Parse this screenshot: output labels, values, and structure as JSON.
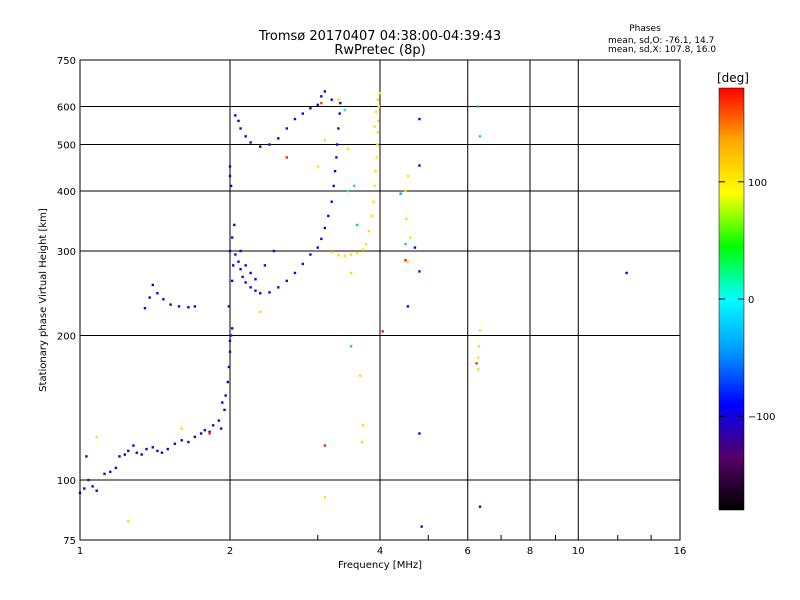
{
  "chart_data": {
    "type": "scatter",
    "title": "Tromsø 20170407 04:38:00-04:39:43",
    "subtitle": "RwPretec (8p)",
    "xlabel": "Frequency [MHz]",
    "ylabel": "Stationary phase Virtual Height [km]",
    "x_scale": "log",
    "y_scale": "log",
    "xlim": [
      1,
      16
    ],
    "ylim": [
      75,
      750
    ],
    "x_ticks": [
      1,
      2,
      4,
      6,
      8,
      10,
      16
    ],
    "y_ticks": [
      75,
      100,
      200,
      300,
      400,
      500,
      600,
      750
    ],
    "grid": true,
    "phase_info": {
      "title": "Phases",
      "line_o": "mean, sd,O: -76.1, 14.7",
      "line_x": "mean, sd,X: 107.8, 16.0"
    },
    "colorbar": {
      "label": "[deg]",
      "range": [
        -180,
        180
      ],
      "ticks": [
        100,
        0,
        -100
      ],
      "tick_labels": [
        "100",
        "0",
        "−100"
      ],
      "colormap": [
        "#000000",
        "#550066",
        "#0000ff",
        "#0099ff",
        "#00ffff",
        "#00ff00",
        "#ffff00",
        "#ffaa00",
        "#ff0000"
      ]
    },
    "series": [
      {
        "values": [
          [
            1.0,
            94,
            -110
          ],
          [
            1.02,
            96,
            -105
          ],
          [
            1.04,
            100,
            -110
          ],
          [
            1.06,
            97,
            -100
          ],
          [
            1.08,
            95,
            -108
          ],
          [
            1.03,
            112,
            -100
          ],
          [
            1.12,
            103,
            -105
          ],
          [
            1.15,
            104,
            -110
          ],
          [
            1.18,
            106,
            -100
          ],
          [
            1.2,
            112,
            -105
          ],
          [
            1.23,
            113,
            -108
          ],
          [
            1.25,
            115,
            -100
          ],
          [
            1.28,
            118,
            -104
          ],
          [
            1.3,
            114,
            -110
          ],
          [
            1.33,
            113,
            -100
          ],
          [
            1.36,
            116,
            -106
          ],
          [
            1.4,
            117,
            -102
          ],
          [
            1.43,
            115,
            -108
          ],
          [
            1.46,
            114,
            -100
          ],
          [
            1.5,
            116,
            -104
          ],
          [
            1.55,
            119,
            -106
          ],
          [
            1.6,
            121,
            -100
          ],
          [
            1.65,
            120,
            -108
          ],
          [
            1.7,
            123,
            -102
          ],
          [
            1.75,
            125,
            -104
          ],
          [
            1.78,
            127,
            -100
          ],
          [
            1.82,
            126,
            -110
          ],
          [
            1.85,
            130,
            -105
          ],
          [
            1.9,
            133,
            -100
          ],
          [
            1.92,
            128,
            -108
          ],
          [
            1.95,
            140,
            -104
          ],
          [
            1.93,
            145,
            -100
          ],
          [
            1.96,
            150,
            -110
          ],
          [
            1.98,
            160,
            -104
          ],
          [
            1.99,
            172,
            -100
          ],
          [
            2.0,
            185,
            -106
          ],
          [
            2.0,
            195,
            -102
          ],
          [
            2.01,
            200,
            -110
          ],
          [
            2.02,
            207,
            -104
          ],
          [
            1.99,
            230,
            -108
          ],
          [
            2.02,
            260,
            -100
          ],
          [
            2.03,
            280,
            -104
          ],
          [
            2.0,
            300,
            -108
          ],
          [
            2.02,
            320,
            -102
          ],
          [
            2.04,
            340,
            -106
          ],
          [
            2.01,
            410,
            -104
          ],
          [
            2.0,
            430,
            -100
          ],
          [
            2.0,
            450,
            -110
          ],
          [
            1.35,
            228,
            -100
          ],
          [
            1.38,
            240,
            -104
          ],
          [
            1.4,
            255,
            -106
          ],
          [
            1.43,
            245,
            -100
          ],
          [
            1.47,
            238,
            -104
          ],
          [
            1.52,
            232,
            -102
          ],
          [
            1.58,
            230,
            -106
          ],
          [
            1.65,
            229,
            -100
          ],
          [
            1.7,
            230,
            -104
          ],
          [
            2.05,
            295,
            -102
          ],
          [
            2.08,
            285,
            -106
          ],
          [
            2.1,
            275,
            -100
          ],
          [
            2.12,
            265,
            -104
          ],
          [
            2.15,
            258,
            -108
          ],
          [
            2.2,
            252,
            -100
          ],
          [
            2.25,
            248,
            -104
          ],
          [
            2.3,
            245,
            -106
          ],
          [
            2.4,
            246,
            -100
          ],
          [
            2.5,
            252,
            -104
          ],
          [
            2.6,
            260,
            -102
          ],
          [
            2.7,
            270,
            -106
          ],
          [
            2.8,
            282,
            -100
          ],
          [
            2.9,
            295,
            -104
          ],
          [
            3.0,
            305,
            -108
          ],
          [
            3.05,
            318,
            -100
          ],
          [
            3.1,
            335,
            -104
          ],
          [
            3.15,
            355,
            -106
          ],
          [
            3.2,
            380,
            -100
          ],
          [
            3.23,
            410,
            -104
          ],
          [
            3.25,
            440,
            -102
          ],
          [
            3.27,
            470,
            -106
          ],
          [
            3.28,
            500,
            -100
          ],
          [
            3.3,
            540,
            -104
          ],
          [
            3.32,
            580,
            -108
          ],
          [
            3.33,
            610,
            -100
          ],
          [
            2.05,
            575,
            -100
          ],
          [
            2.08,
            560,
            -104
          ],
          [
            2.1,
            540,
            -106
          ],
          [
            2.15,
            520,
            -100
          ],
          [
            2.2,
            505,
            -104
          ],
          [
            2.3,
            495,
            -102
          ],
          [
            2.4,
            500,
            -106
          ],
          [
            2.5,
            515,
            -100
          ],
          [
            2.6,
            540,
            -104
          ],
          [
            2.7,
            565,
            -106
          ],
          [
            2.8,
            580,
            -100
          ],
          [
            2.9,
            595,
            -104
          ],
          [
            3.0,
            605,
            -102
          ],
          [
            3.05,
            630,
            -106
          ],
          [
            3.1,
            645,
            -100
          ],
          [
            3.2,
            620,
            -104
          ],
          [
            2.1,
            300,
            -95
          ],
          [
            2.15,
            280,
            -98
          ],
          [
            2.2,
            270,
            -96
          ],
          [
            2.25,
            262,
            -94
          ],
          [
            2.35,
            280,
            -96
          ],
          [
            2.45,
            300,
            -98
          ],
          [
            4.8,
            565,
            -100
          ],
          [
            4.8,
            452,
            -104
          ],
          [
            4.8,
            272,
            -106
          ],
          [
            4.8,
            125,
            -100
          ],
          [
            4.85,
            80,
            -104
          ],
          [
            12.5,
            270,
            -102
          ],
          [
            4.55,
            230,
            -108
          ],
          [
            4.7,
            305,
            -100
          ],
          [
            6.35,
            88,
            -130
          ]
        ]
      },
      {
        "values": [
          [
            3.2,
            298,
            105
          ],
          [
            3.3,
            294,
            108
          ],
          [
            3.4,
            293,
            106
          ],
          [
            3.5,
            295,
            110
          ],
          [
            3.6,
            297,
            104
          ],
          [
            3.7,
            302,
            108
          ],
          [
            3.75,
            310,
            106
          ],
          [
            3.8,
            330,
            110
          ],
          [
            3.85,
            355,
            104
          ],
          [
            3.88,
            380,
            108
          ],
          [
            3.9,
            410,
            106
          ],
          [
            3.92,
            440,
            110
          ],
          [
            3.94,
            470,
            104
          ],
          [
            3.95,
            500,
            108
          ],
          [
            3.96,
            530,
            106
          ],
          [
            3.97,
            560,
            110
          ],
          [
            3.98,
            600,
            104
          ],
          [
            3.99,
            640,
            108
          ],
          [
            3.96,
            620,
            112
          ],
          [
            3.93,
            585,
            106
          ],
          [
            3.9,
            545,
            110
          ],
          [
            4.5,
            400,
            110
          ],
          [
            4.55,
            430,
            105
          ],
          [
            4.52,
            350,
            108
          ],
          [
            4.6,
            320,
            106
          ],
          [
            4.55,
            285,
            112
          ],
          [
            6.3,
            170,
            108
          ],
          [
            6.3,
            180,
            104
          ],
          [
            6.32,
            190,
            110
          ],
          [
            6.35,
            205,
            106
          ],
          [
            3.5,
            270,
            108
          ],
          [
            3.65,
            165,
            112
          ],
          [
            3.7,
            130,
            106
          ],
          [
            3.68,
            120,
            110
          ],
          [
            3.1,
            92,
            104
          ],
          [
            1.25,
            82,
            108
          ],
          [
            1.6,
            128,
            106
          ],
          [
            1.08,
            123,
            110
          ],
          [
            2.3,
            224,
            112
          ],
          [
            3.0,
            450,
            104
          ],
          [
            3.1,
            510,
            108
          ],
          [
            3.3,
            620,
            110
          ],
          [
            3.45,
            490,
            106
          ]
        ]
      },
      {
        "values": [
          [
            2.6,
            470,
            170
          ],
          [
            3.05,
            610,
            165
          ],
          [
            4.05,
            204,
            175
          ],
          [
            3.1,
            118,
            170
          ],
          [
            1.82,
            125,
            168
          ],
          [
            4.5,
            287,
            172
          ],
          [
            6.25,
            175,
            166
          ]
        ]
      },
      {
        "values": [
          [
            3.5,
            190,
            -20
          ],
          [
            3.55,
            410,
            -15
          ],
          [
            3.6,
            340,
            -30
          ],
          [
            4.5,
            310,
            -25
          ],
          [
            6.35,
            520,
            -20
          ],
          [
            6.3,
            600,
            -30
          ],
          [
            3.4,
            590,
            10
          ],
          [
            3.45,
            400,
            5
          ],
          [
            4.4,
            395,
            -40
          ]
        ]
      }
    ]
  }
}
